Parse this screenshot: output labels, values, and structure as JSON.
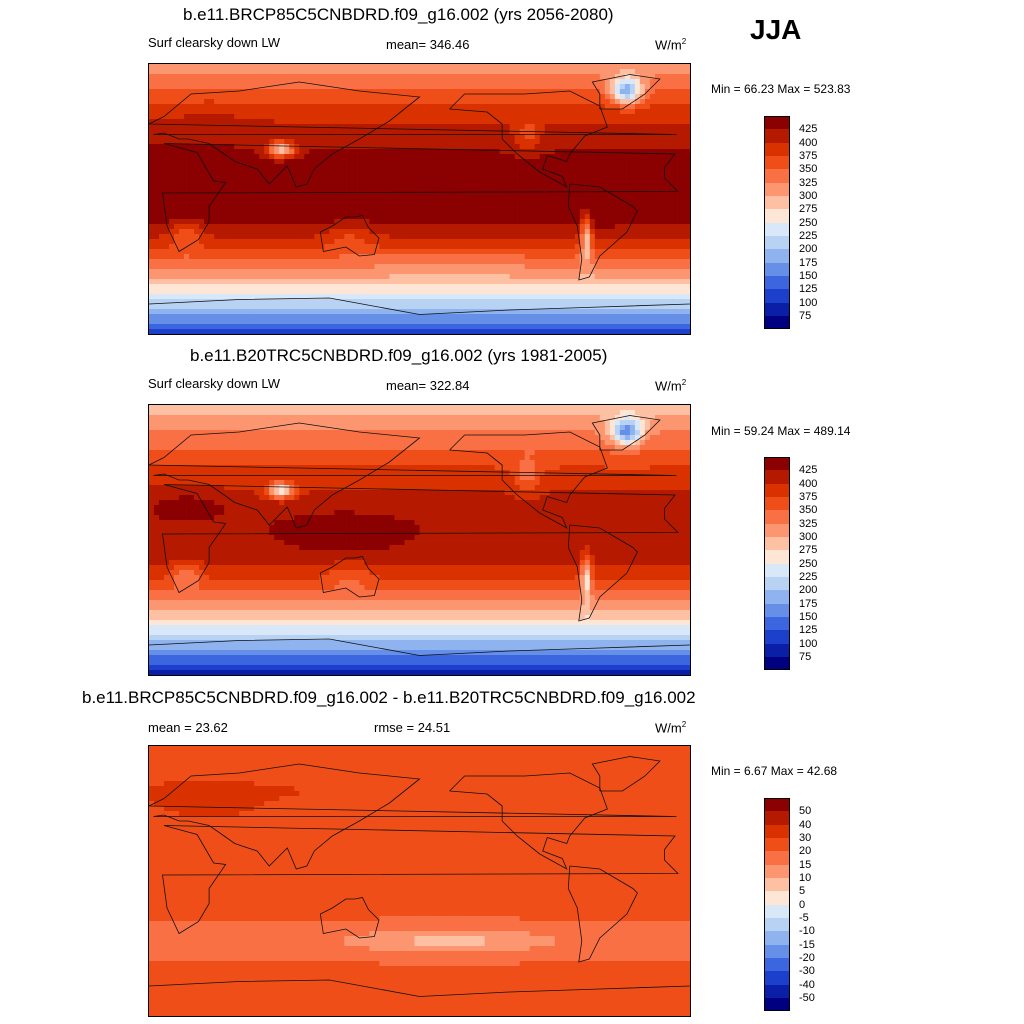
{
  "season": "JJA",
  "panels": [
    {
      "title": "b.e11.BRCP85C5CNBDRD.f09_g16.002 (yrs 2056-2080)",
      "left_label": "Surf clearsky down LW",
      "mean": "mean= 346.46",
      "units": "W/m",
      "units_sup": "2",
      "minmax": "Min =  66.23 Max = 523.83",
      "field": "rcp",
      "colorbar": {
        "labels": [
          "425",
          "400",
          "375",
          "350",
          "325",
          "300",
          "275",
          "250",
          "225",
          "200",
          "175",
          "150",
          "125",
          "100",
          "75"
        ],
        "colors": [
          "#8b0000",
          "#b51a00",
          "#d93200",
          "#f04e18",
          "#fa7045",
          "#fc9670",
          "#fdc0a3",
          "#fee6d6",
          "#d8e8f8",
          "#b8d2f4",
          "#8fb3ee",
          "#6690e8",
          "#3c66e0",
          "#1c40cc",
          "#0a1ea8",
          "#000080"
        ]
      }
    },
    {
      "title": "b.e11.B20TRC5CNBDRD.f09_g16.002 (yrs 1981-2005)",
      "left_label": "Surf clearsky down LW",
      "mean": "mean= 322.84",
      "units": "W/m",
      "units_sup": "2",
      "minmax": "Min =  59.24 Max = 489.14",
      "field": "hist",
      "colorbar": {
        "labels": [
          "425",
          "400",
          "375",
          "350",
          "325",
          "300",
          "275",
          "250",
          "225",
          "200",
          "175",
          "150",
          "125",
          "100",
          "75"
        ],
        "colors": [
          "#8b0000",
          "#b51a00",
          "#d93200",
          "#f04e18",
          "#fa7045",
          "#fc9670",
          "#fdc0a3",
          "#fee6d6",
          "#d8e8f8",
          "#b8d2f4",
          "#8fb3ee",
          "#6690e8",
          "#3c66e0",
          "#1c40cc",
          "#0a1ea8",
          "#000080"
        ]
      }
    },
    {
      "title": "b.e11.BRCP85C5CNBDRD.f09_g16.002 - b.e11.B20TRC5CNBDRD.f09_g16.002",
      "left_label": "mean =  23.62",
      "mean": "rmse =  24.51",
      "units": "W/m",
      "units_sup": "2",
      "minmax": "Min =   6.67 Max =  42.68",
      "field": "diff",
      "colorbar": {
        "labels": [
          "50",
          "40",
          "30",
          "20",
          "15",
          "10",
          "5",
          "0",
          "-5",
          "-10",
          "-15",
          "-20",
          "-30",
          "-40",
          "-50"
        ],
        "colors": [
          "#8b0000",
          "#b51a00",
          "#d93200",
          "#f04e18",
          "#fa7045",
          "#fc9670",
          "#fdc0a3",
          "#fee6d6",
          "#d8e8f8",
          "#b8d2f4",
          "#8fb3ee",
          "#6690e8",
          "#3c66e0",
          "#1c40cc",
          "#0a1ea8",
          "#000080"
        ]
      }
    }
  ]
}
